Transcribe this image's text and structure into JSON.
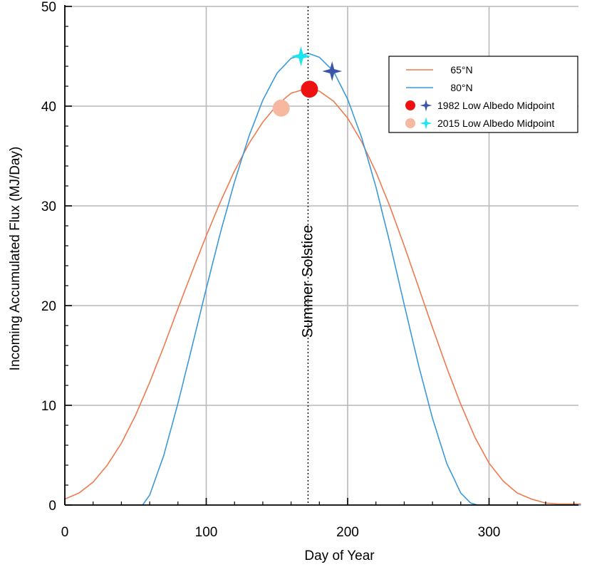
{
  "chart_data": {
    "type": "line",
    "title": "",
    "xlabel": "Day of Year",
    "ylabel": "Incoming Accumulated Flux (MJ/Day)",
    "xlim": [
      0,
      365
    ],
    "ylim": [
      0,
      50
    ],
    "xticks": [
      0,
      100,
      200,
      300
    ],
    "yticks": [
      0,
      10,
      20,
      30,
      40,
      50
    ],
    "grid": true,
    "legend_position": "top-right",
    "series": [
      {
        "name": "65°N",
        "color": "#ee7a4f",
        "x": [
          0,
          10,
          20,
          30,
          40,
          50,
          60,
          70,
          80,
          90,
          100,
          110,
          120,
          130,
          140,
          150,
          160,
          172,
          180,
          190,
          200,
          210,
          220,
          230,
          240,
          250,
          260,
          270,
          280,
          290,
          300,
          310,
          320,
          330,
          340,
          350,
          365
        ],
        "y": [
          0.6,
          1.2,
          2.3,
          4.0,
          6.2,
          9.0,
          12.3,
          15.9,
          19.7,
          23.4,
          27.0,
          30.4,
          33.5,
          36.2,
          38.4,
          40.1,
          41.3,
          41.8,
          41.5,
          40.5,
          38.8,
          36.4,
          33.4,
          29.9,
          26.0,
          21.9,
          17.8,
          13.8,
          10.1,
          6.8,
          4.2,
          2.4,
          1.2,
          0.6,
          0.2,
          0.1,
          0.1
        ]
      },
      {
        "name": "80°N",
        "color": "#3a9ad9",
        "x": [
          0,
          50,
          55,
          60,
          70,
          80,
          90,
          100,
          110,
          120,
          130,
          140,
          150,
          160,
          172,
          180,
          190,
          200,
          210,
          220,
          230,
          240,
          250,
          260,
          270,
          280,
          287,
          292,
          365
        ],
        "y": [
          0,
          0,
          0,
          1.0,
          5.0,
          10.2,
          15.9,
          21.7,
          27.3,
          32.4,
          36.9,
          40.6,
          43.3,
          44.8,
          45.3,
          44.9,
          43.5,
          40.7,
          36.8,
          31.9,
          26.2,
          20.1,
          14.1,
          8.7,
          4.2,
          1.2,
          0.2,
          0,
          0
        ]
      }
    ],
    "markers": [
      {
        "name": "1982 Low Albedo Midpoint",
        "latitude": "65°N",
        "shape": "circle",
        "color": "#ee1111",
        "x": 173,
        "y": 41.7
      },
      {
        "name": "1982 Low Albedo Midpoint",
        "latitude": "80°N",
        "shape": "star",
        "color": "#3a55a8",
        "x": 189,
        "y": 43.5
      },
      {
        "name": "2015 Low Albedo Midpoint",
        "latitude": "65°N",
        "shape": "circle",
        "color": "#f6b8a0",
        "x": 153,
        "y": 39.8
      },
      {
        "name": "2015 Low Albedo Midpoint",
        "latitude": "80°N",
        "shape": "star",
        "color": "#18e8ee",
        "x": 167,
        "y": 45.0
      }
    ],
    "vline": {
      "x": 172,
      "label": "Summer Solstice",
      "style": "dotted"
    },
    "legend": {
      "line_entries": [
        {
          "label": "65°N",
          "color": "#ee7a4f"
        },
        {
          "label": "80°N",
          "color": "#3a9ad9"
        }
      ],
      "marker_entries": [
        {
          "label": "1982 Low Albedo Midpoint",
          "circle_color": "#ee1111",
          "star_color": "#3a55a8"
        },
        {
          "label": "2015 Low Albedo Midpoint",
          "circle_color": "#f6b8a0",
          "star_color": "#18e8ee"
        }
      ]
    }
  }
}
